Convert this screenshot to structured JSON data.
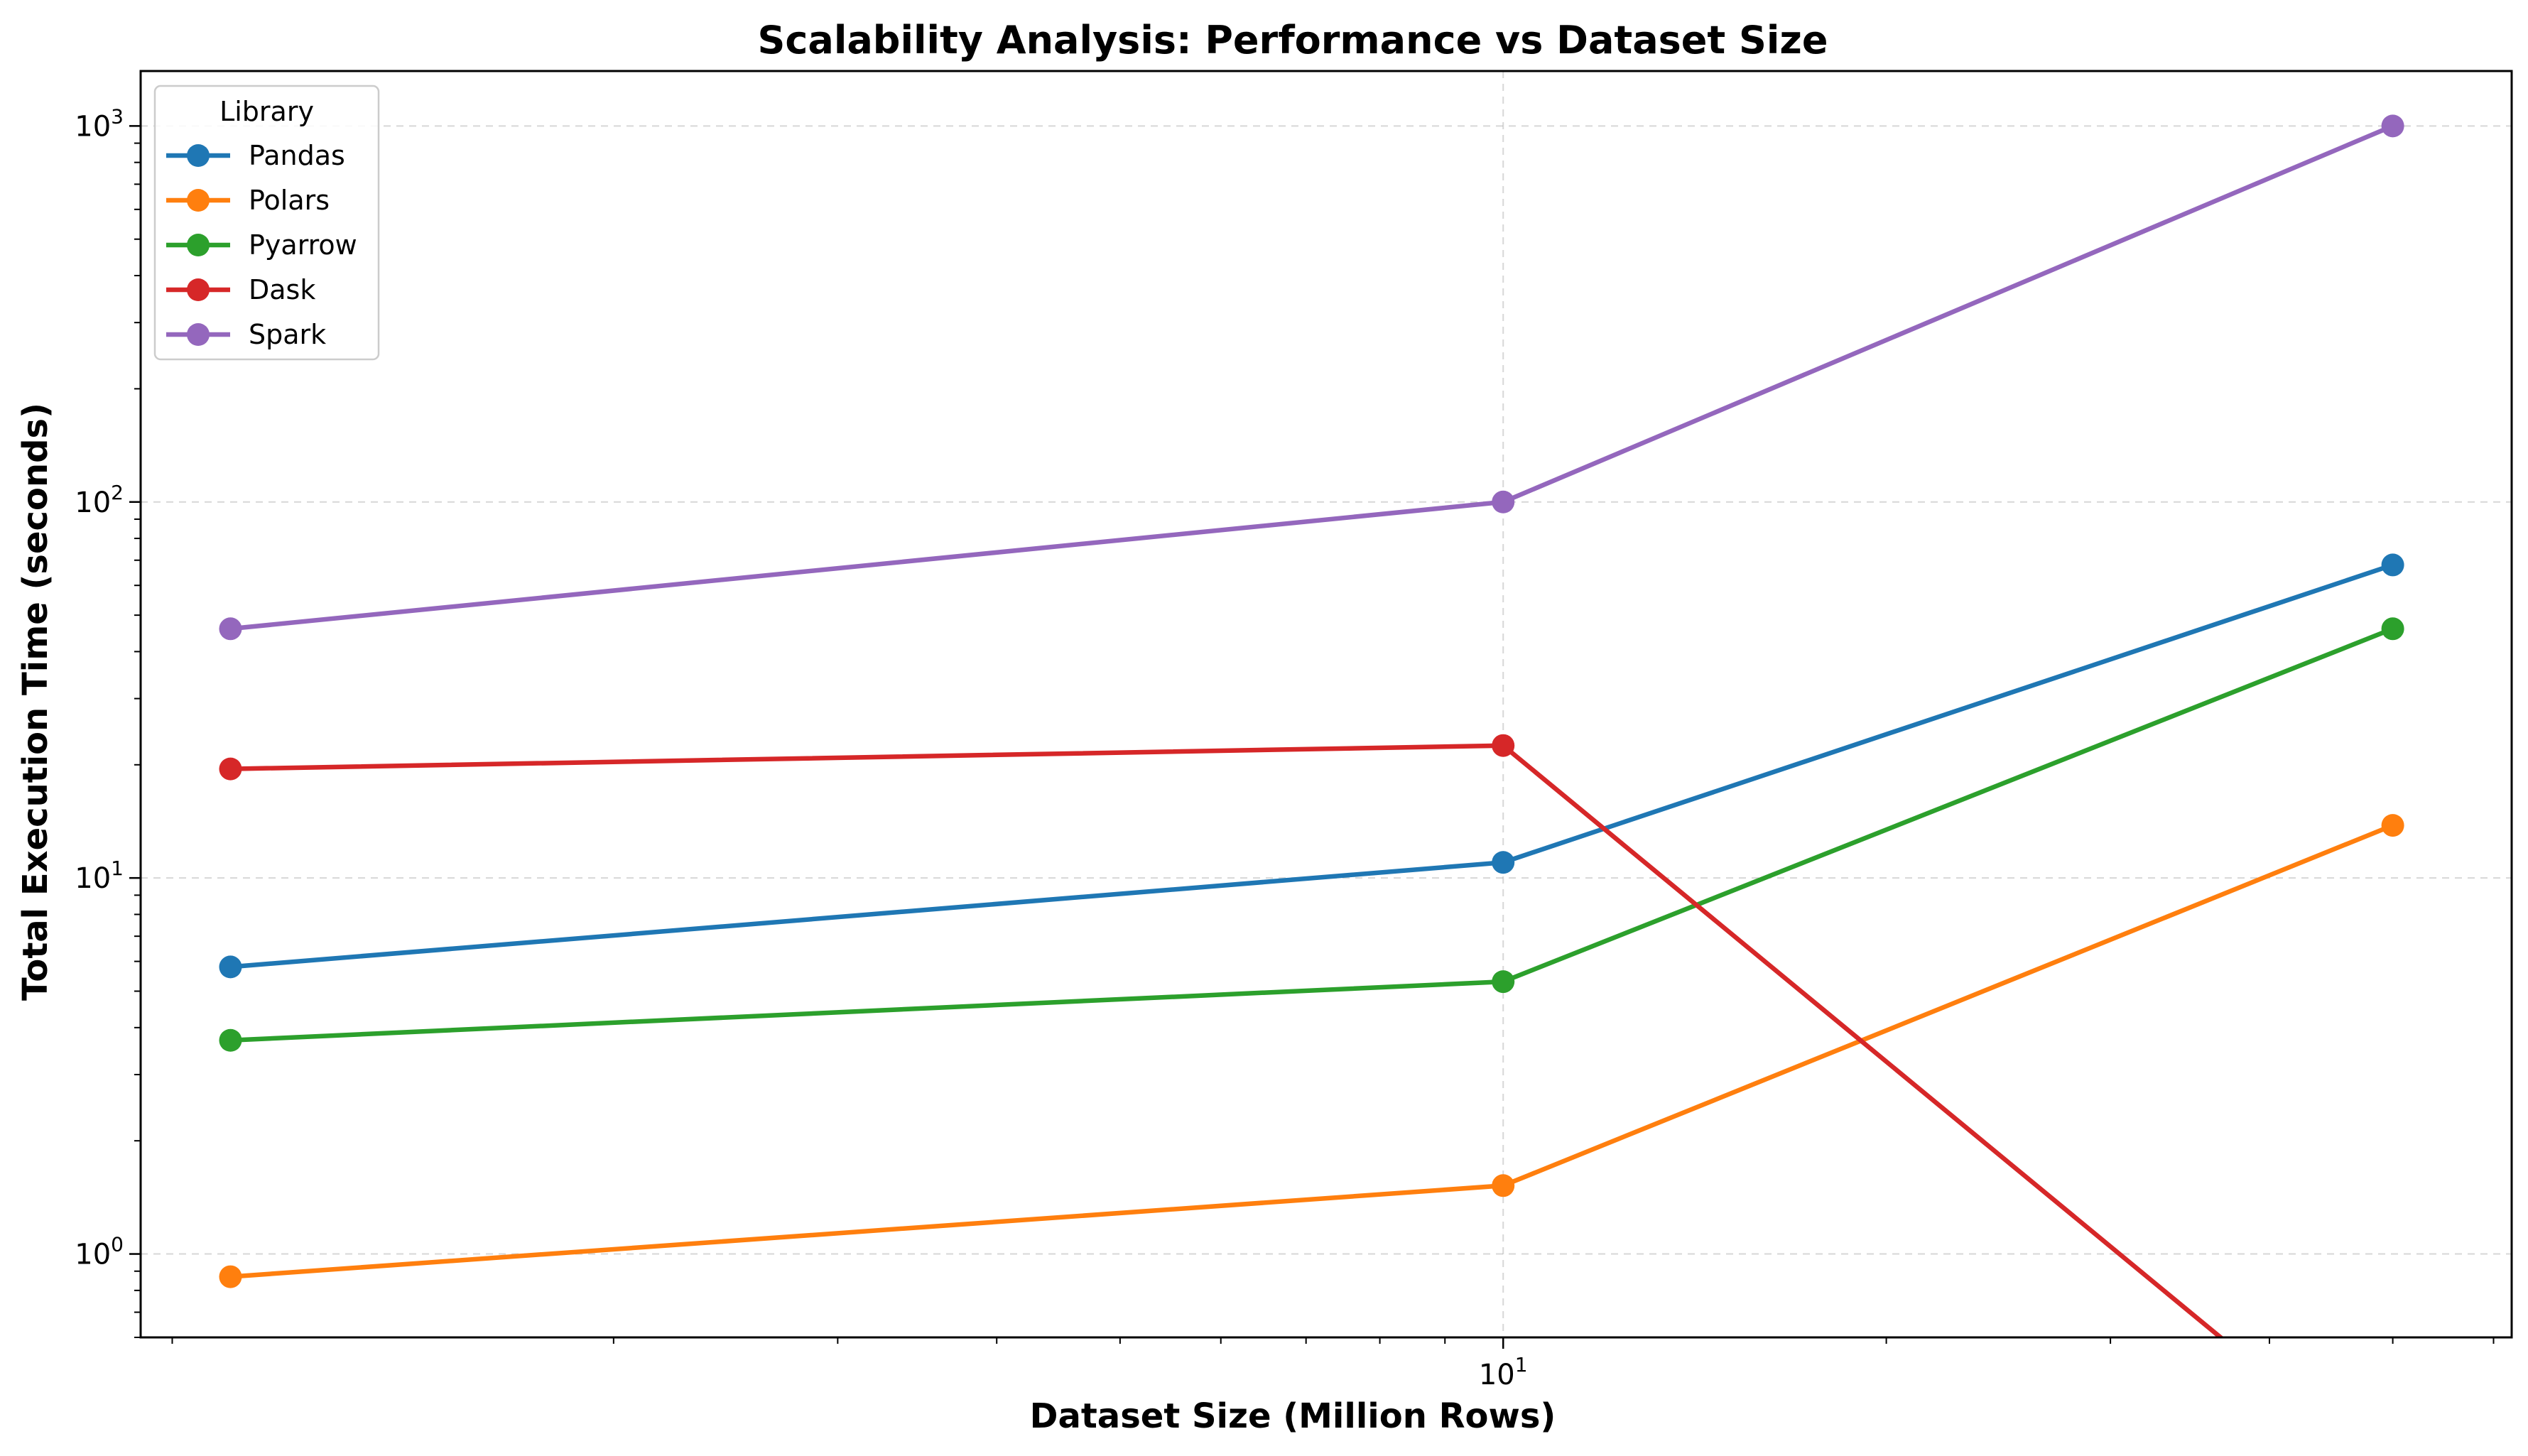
{
  "chart_data": {
    "type": "line",
    "title": "Scalability Analysis: Performance vs Dataset Size",
    "xlabel": "Dataset Size (Million Rows)",
    "ylabel": "Total Execution Time (seconds)",
    "x_scale": "log",
    "y_scale": "log",
    "x": [
      1,
      10,
      50
    ],
    "xlim": [
      0.85,
      62
    ],
    "ylim": [
      0.6,
      1400
    ],
    "x_tick_labels": [
      {
        "value": 10,
        "base": "10",
        "exp": "1"
      }
    ],
    "y_tick_labels": [
      {
        "value": 1,
        "base": "10",
        "exp": "0"
      },
      {
        "value": 10,
        "base": "10",
        "exp": "1"
      },
      {
        "value": 100,
        "base": "10",
        "exp": "2"
      },
      {
        "value": 1000,
        "base": "10",
        "exp": "3"
      }
    ],
    "grid": true,
    "legend": {
      "title": "Library",
      "placement": "top-left"
    },
    "series": [
      {
        "name": "Pandas",
        "color": "#1f77b4",
        "values": [
          5.8,
          11.0,
          68.0
        ]
      },
      {
        "name": "Polars",
        "color": "#ff7f0e",
        "values": [
          0.87,
          1.52,
          13.8
        ]
      },
      {
        "name": "Pyarrow",
        "color": "#2ca02c",
        "values": [
          3.7,
          5.3,
          46.0
        ]
      },
      {
        "name": "Dask",
        "color": "#d62728",
        "values": [
          19.5,
          22.5,
          0.0
        ]
      },
      {
        "name": "Spark",
        "color": "#9467bd",
        "values": [
          46.0,
          100.0,
          1000.0
        ]
      }
    ]
  }
}
